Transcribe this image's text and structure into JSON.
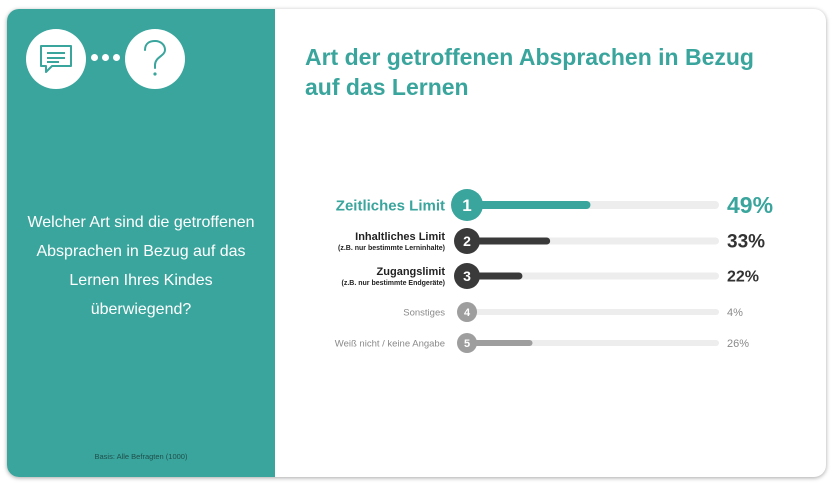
{
  "panel": {
    "question": "Welcher Art sind die getroffenen Absprachen in Bezug auf das Lernen Ihres Kindes überwiegend?",
    "basis": "Basis: Alle Befragten (1000)",
    "icons": [
      "chat-bubble-icon",
      "question-mark-icon"
    ],
    "colors": {
      "panel": "#3aa59d"
    }
  },
  "chart_data": {
    "type": "bar",
    "title": "Art der getroffenen Absprachen in Bezug auf das Lernen",
    "xlim": [
      0,
      100
    ],
    "grid": false,
    "colors": {
      "highlight": "#3aa59d",
      "dark": "#3a3a3a",
      "muted": "#9e9e9e",
      "track": "#ededed"
    },
    "bars": [
      {
        "rank": "1",
        "label": "Zeitliches Limit",
        "sublabel": "",
        "value": 49,
        "value_label": "49%",
        "style": "highlight"
      },
      {
        "rank": "2",
        "label": "Inhaltliches Limit",
        "sublabel": "(z.B. nur bestimmte Lerninhalte)",
        "value": 33,
        "value_label": "33%",
        "style": "dark"
      },
      {
        "rank": "3",
        "label": "Zugangslimit",
        "sublabel": "(z.B. nur bestimmte Endgeräte)",
        "value": 22,
        "value_label": "22%",
        "style": "dark"
      },
      {
        "rank": "4",
        "label": "Sonstiges",
        "sublabel": "",
        "value": 4,
        "value_label": "4%",
        "style": "muted"
      },
      {
        "rank": "5",
        "label": "Weiß nicht / keine Angabe",
        "sublabel": "",
        "value": 26,
        "value_label": "26%",
        "style": "muted"
      }
    ]
  }
}
